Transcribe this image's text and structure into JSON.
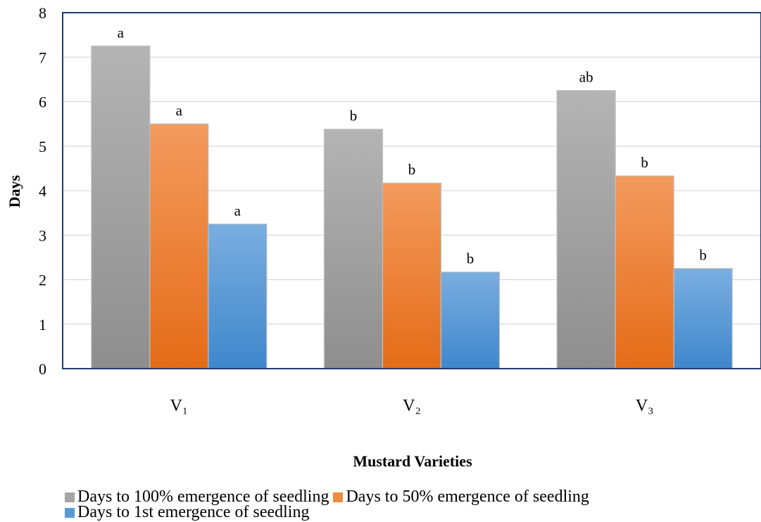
{
  "chart_data": {
    "type": "bar",
    "title": "",
    "xlabel": "Mustard Varieties",
    "ylabel": "Days",
    "ylim": [
      0,
      8
    ],
    "yticks": [
      "0",
      "1",
      "2",
      "3",
      "4",
      "5",
      "6",
      "7",
      "8"
    ],
    "categories": [
      "V₁",
      "V₂",
      "V₃"
    ],
    "grid": true,
    "legend_position": "bottom",
    "series": [
      {
        "name": "Days to 100% emergence of seedling",
        "color": "#a5a5a5",
        "values": [
          7.25,
          5.38,
          6.25
        ],
        "labels": [
          "a",
          "b",
          "ab"
        ]
      },
      {
        "name": "Days to 50% emergence of seedling",
        "color": "#f08a3c",
        "values": [
          5.5,
          4.17,
          4.33
        ],
        "labels": [
          "a",
          "b",
          "b"
        ]
      },
      {
        "name": "Days to 1st emergence of seedling",
        "color": "#5b9bd5",
        "values": [
          3.25,
          2.17,
          2.25
        ],
        "labels": [
          "a",
          "b",
          "b"
        ]
      }
    ]
  }
}
